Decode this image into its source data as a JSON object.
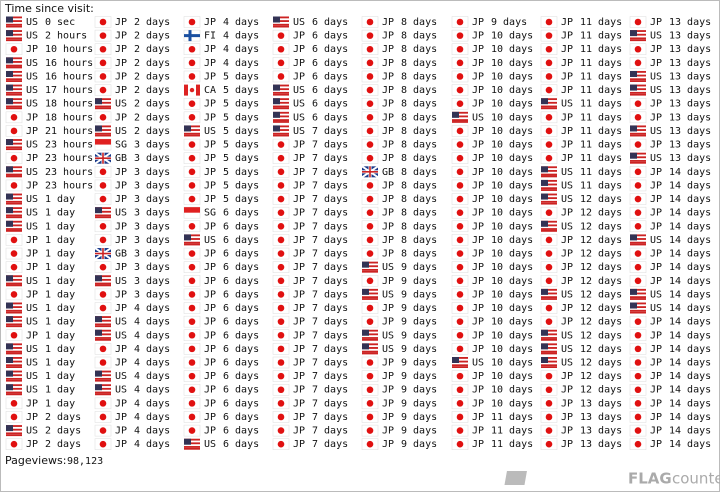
{
  "header": {
    "title": "Time since visit:"
  },
  "columns": [
    [
      [
        "US",
        "0 sec"
      ],
      [
        "US",
        "2 hours"
      ],
      [
        "JP",
        "10 hours"
      ],
      [
        "US",
        "16 hours"
      ],
      [
        "US",
        "16 hours"
      ],
      [
        "US",
        "17 hours"
      ],
      [
        "US",
        "18 hours"
      ],
      [
        "JP",
        "18 hours"
      ],
      [
        "JP",
        "21 hours"
      ],
      [
        "US",
        "23 hours"
      ],
      [
        "JP",
        "23 hours"
      ],
      [
        "US",
        "23 hours"
      ],
      [
        "JP",
        "23 hours"
      ],
      [
        "US",
        "1 day"
      ],
      [
        "US",
        "1 day"
      ],
      [
        "US",
        "1 day"
      ],
      [
        "JP",
        "1 day"
      ],
      [
        "JP",
        "1 day"
      ],
      [
        "JP",
        "1 day"
      ],
      [
        "US",
        "1 day"
      ],
      [
        "JP",
        "1 day"
      ],
      [
        "US",
        "1 day"
      ],
      [
        "US",
        "1 day"
      ],
      [
        "JP",
        "1 day"
      ],
      [
        "US",
        "1 day"
      ],
      [
        "US",
        "1 day"
      ],
      [
        "US",
        "1 day"
      ],
      [
        "US",
        "1 day"
      ],
      [
        "JP",
        "1 day"
      ],
      [
        "JP",
        "2 days"
      ],
      [
        "US",
        "2 days"
      ],
      [
        "JP",
        "2 days"
      ]
    ],
    [
      [
        "JP",
        "2 days"
      ],
      [
        "JP",
        "2 days"
      ],
      [
        "JP",
        "2 days"
      ],
      [
        "JP",
        "2 days"
      ],
      [
        "JP",
        "2 days"
      ],
      [
        "JP",
        "2 days"
      ],
      [
        "US",
        "2 days"
      ],
      [
        "JP",
        "2 days"
      ],
      [
        "US",
        "2 days"
      ],
      [
        "SG",
        "3 days"
      ],
      [
        "GB",
        "3 days"
      ],
      [
        "JP",
        "3 days"
      ],
      [
        "JP",
        "3 days"
      ],
      [
        "JP",
        "3 days"
      ],
      [
        "US",
        "3 days"
      ],
      [
        "JP",
        "3 days"
      ],
      [
        "JP",
        "3 days"
      ],
      [
        "GB",
        "3 days"
      ],
      [
        "JP",
        "3 days"
      ],
      [
        "US",
        "3 days"
      ],
      [
        "JP",
        "3 days"
      ],
      [
        "JP",
        "4 days"
      ],
      [
        "US",
        "4 days"
      ],
      [
        "US",
        "4 days"
      ],
      [
        "JP",
        "4 days"
      ],
      [
        "JP",
        "4 days"
      ],
      [
        "US",
        "4 days"
      ],
      [
        "US",
        "4 days"
      ],
      [
        "JP",
        "4 days"
      ],
      [
        "JP",
        "4 days"
      ],
      [
        "JP",
        "4 days"
      ],
      [
        "JP",
        "4 days"
      ]
    ],
    [
      [
        "JP",
        "4 days"
      ],
      [
        "FI",
        "4 days"
      ],
      [
        "JP",
        "4 days"
      ],
      [
        "JP",
        "4 days"
      ],
      [
        "JP",
        "5 days"
      ],
      [
        "CA",
        "5 days"
      ],
      [
        "JP",
        "5 days"
      ],
      [
        "JP",
        "5 days"
      ],
      [
        "US",
        "5 days"
      ],
      [
        "JP",
        "5 days"
      ],
      [
        "JP",
        "5 days"
      ],
      [
        "JP",
        "5 days"
      ],
      [
        "JP",
        "5 days"
      ],
      [
        "JP",
        "5 days"
      ],
      [
        "SG",
        "6 days"
      ],
      [
        "JP",
        "6 days"
      ],
      [
        "US",
        "6 days"
      ],
      [
        "JP",
        "6 days"
      ],
      [
        "JP",
        "6 days"
      ],
      [
        "JP",
        "6 days"
      ],
      [
        "JP",
        "6 days"
      ],
      [
        "JP",
        "6 days"
      ],
      [
        "JP",
        "6 days"
      ],
      [
        "JP",
        "6 days"
      ],
      [
        "JP",
        "6 days"
      ],
      [
        "JP",
        "6 days"
      ],
      [
        "JP",
        "6 days"
      ],
      [
        "JP",
        "6 days"
      ],
      [
        "JP",
        "6 days"
      ],
      [
        "JP",
        "6 days"
      ],
      [
        "JP",
        "6 days"
      ],
      [
        "US",
        "6 days"
      ]
    ],
    [
      [
        "US",
        "6 days"
      ],
      [
        "JP",
        "6 days"
      ],
      [
        "JP",
        "6 days"
      ],
      [
        "JP",
        "6 days"
      ],
      [
        "JP",
        "6 days"
      ],
      [
        "US",
        "6 days"
      ],
      [
        "US",
        "6 days"
      ],
      [
        "US",
        "6 days"
      ],
      [
        "US",
        "7 days"
      ],
      [
        "JP",
        "7 days"
      ],
      [
        "JP",
        "7 days"
      ],
      [
        "JP",
        "7 days"
      ],
      [
        "JP",
        "7 days"
      ],
      [
        "JP",
        "7 days"
      ],
      [
        "JP",
        "7 days"
      ],
      [
        "JP",
        "7 days"
      ],
      [
        "JP",
        "7 days"
      ],
      [
        "JP",
        "7 days"
      ],
      [
        "JP",
        "7 days"
      ],
      [
        "JP",
        "7 days"
      ],
      [
        "JP",
        "7 days"
      ],
      [
        "JP",
        "7 days"
      ],
      [
        "JP",
        "7 days"
      ],
      [
        "JP",
        "7 days"
      ],
      [
        "JP",
        "7 days"
      ],
      [
        "JP",
        "7 days"
      ],
      [
        "JP",
        "7 days"
      ],
      [
        "JP",
        "7 days"
      ],
      [
        "JP",
        "7 days"
      ],
      [
        "JP",
        "7 days"
      ],
      [
        "JP",
        "7 days"
      ],
      [
        "JP",
        "7 days"
      ]
    ],
    [
      [
        "JP",
        "8 days"
      ],
      [
        "JP",
        "8 days"
      ],
      [
        "JP",
        "8 days"
      ],
      [
        "JP",
        "8 days"
      ],
      [
        "JP",
        "8 days"
      ],
      [
        "JP",
        "8 days"
      ],
      [
        "JP",
        "8 days"
      ],
      [
        "JP",
        "8 days"
      ],
      [
        "JP",
        "8 days"
      ],
      [
        "JP",
        "8 days"
      ],
      [
        "JP",
        "8 days"
      ],
      [
        "GB",
        "8 days"
      ],
      [
        "JP",
        "8 days"
      ],
      [
        "JP",
        "8 days"
      ],
      [
        "JP",
        "8 days"
      ],
      [
        "JP",
        "8 days"
      ],
      [
        "JP",
        "8 days"
      ],
      [
        "JP",
        "8 days"
      ],
      [
        "US",
        "9 days"
      ],
      [
        "JP",
        "9 days"
      ],
      [
        "US",
        "9 days"
      ],
      [
        "JP",
        "9 days"
      ],
      [
        "JP",
        "9 days"
      ],
      [
        "US",
        "9 days"
      ],
      [
        "US",
        "9 days"
      ],
      [
        "JP",
        "9 days"
      ],
      [
        "JP",
        "9 days"
      ],
      [
        "JP",
        "9 days"
      ],
      [
        "JP",
        "9 days"
      ],
      [
        "JP",
        "9 days"
      ],
      [
        "JP",
        "9 days"
      ],
      [
        "JP",
        "9 days"
      ]
    ],
    [
      [
        "JP",
        "9 days"
      ],
      [
        "JP",
        "10 days"
      ],
      [
        "JP",
        "10 days"
      ],
      [
        "JP",
        "10 days"
      ],
      [
        "JP",
        "10 days"
      ],
      [
        "JP",
        "10 days"
      ],
      [
        "JP",
        "10 days"
      ],
      [
        "US",
        "10 days"
      ],
      [
        "JP",
        "10 days"
      ],
      [
        "JP",
        "10 days"
      ],
      [
        "JP",
        "10 days"
      ],
      [
        "JP",
        "10 days"
      ],
      [
        "JP",
        "10 days"
      ],
      [
        "JP",
        "10 days"
      ],
      [
        "JP",
        "10 days"
      ],
      [
        "JP",
        "10 days"
      ],
      [
        "JP",
        "10 days"
      ],
      [
        "JP",
        "10 days"
      ],
      [
        "JP",
        "10 days"
      ],
      [
        "JP",
        "10 days"
      ],
      [
        "JP",
        "10 days"
      ],
      [
        "JP",
        "10 days"
      ],
      [
        "JP",
        "10 days"
      ],
      [
        "JP",
        "10 days"
      ],
      [
        "JP",
        "10 days"
      ],
      [
        "US",
        "10 days"
      ],
      [
        "JP",
        "10 days"
      ],
      [
        "JP",
        "10 days"
      ],
      [
        "JP",
        "10 days"
      ],
      [
        "JP",
        "11 days"
      ],
      [
        "JP",
        "11 days"
      ],
      [
        "JP",
        "11 days"
      ]
    ],
    [
      [
        "JP",
        "11 days"
      ],
      [
        "JP",
        "11 days"
      ],
      [
        "JP",
        "11 days"
      ],
      [
        "JP",
        "11 days"
      ],
      [
        "JP",
        "11 days"
      ],
      [
        "JP",
        "11 days"
      ],
      [
        "US",
        "11 days"
      ],
      [
        "JP",
        "11 days"
      ],
      [
        "JP",
        "11 days"
      ],
      [
        "JP",
        "11 days"
      ],
      [
        "JP",
        "11 days"
      ],
      [
        "US",
        "11 days"
      ],
      [
        "US",
        "11 days"
      ],
      [
        "US",
        "12 days"
      ],
      [
        "JP",
        "12 days"
      ],
      [
        "US",
        "12 days"
      ],
      [
        "JP",
        "12 days"
      ],
      [
        "JP",
        "12 days"
      ],
      [
        "JP",
        "12 days"
      ],
      [
        "JP",
        "12 days"
      ],
      [
        "US",
        "12 days"
      ],
      [
        "JP",
        "12 days"
      ],
      [
        "JP",
        "12 days"
      ],
      [
        "US",
        "12 days"
      ],
      [
        "US",
        "12 days"
      ],
      [
        "US",
        "12 days"
      ],
      [
        "JP",
        "12 days"
      ],
      [
        "JP",
        "12 days"
      ],
      [
        "JP",
        "13 days"
      ],
      [
        "JP",
        "13 days"
      ],
      [
        "JP",
        "13 days"
      ],
      [
        "JP",
        "13 days"
      ]
    ],
    [
      [
        "JP",
        "13 days"
      ],
      [
        "US",
        "13 days"
      ],
      [
        "JP",
        "13 days"
      ],
      [
        "JP",
        "13 days"
      ],
      [
        "US",
        "13 days"
      ],
      [
        "US",
        "13 days"
      ],
      [
        "JP",
        "13 days"
      ],
      [
        "JP",
        "13 days"
      ],
      [
        "US",
        "13 days"
      ],
      [
        "JP",
        "13 days"
      ],
      [
        "US",
        "13 days"
      ],
      [
        "JP",
        "14 days"
      ],
      [
        "JP",
        "14 days"
      ],
      [
        "JP",
        "14 days"
      ],
      [
        "JP",
        "14 days"
      ],
      [
        "JP",
        "14 days"
      ],
      [
        "US",
        "14 days"
      ],
      [
        "JP",
        "14 days"
      ],
      [
        "JP",
        "14 days"
      ],
      [
        "JP",
        "14 days"
      ],
      [
        "US",
        "14 days"
      ],
      [
        "US",
        "14 days"
      ],
      [
        "JP",
        "14 days"
      ],
      [
        "JP",
        "14 days"
      ],
      [
        "JP",
        "14 days"
      ],
      [
        "JP",
        "14 days"
      ],
      [
        "JP",
        "14 days"
      ],
      [
        "JP",
        "14 days"
      ],
      [
        "JP",
        "14 days"
      ],
      [
        "JP",
        "14 days"
      ],
      [
        "JP",
        "14 days"
      ],
      [
        "JP",
        "14 days"
      ]
    ]
  ],
  "footer": {
    "label": "Pageviews:",
    "value": "98,123",
    "logo_flag": "FLAG",
    "logo_counter": "counter"
  }
}
